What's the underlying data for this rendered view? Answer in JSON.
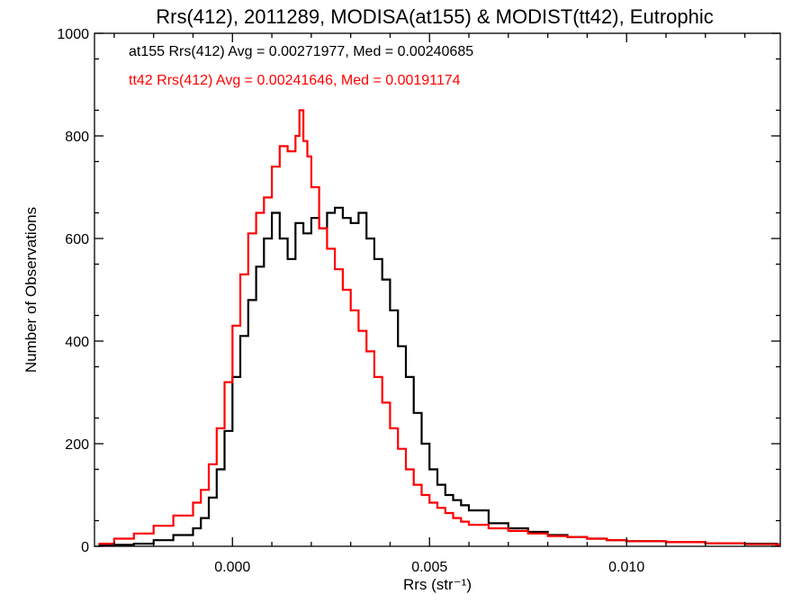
{
  "chart_data": {
    "type": "line",
    "step": true,
    "title": "Rrs(412), 2011289, MODISA(at155) & MODIST(tt42), Eutrophic",
    "xlabel": "Rrs (str⁻¹)",
    "ylabel": "Number of Observations",
    "xlim": [
      -0.0035,
      0.0139
    ],
    "ylim": [
      0,
      1000
    ],
    "xticks": [
      0.0,
      0.005,
      0.01
    ],
    "xtick_labels": [
      "0.000",
      "0.005",
      "0.010"
    ],
    "yticks": [
      0,
      200,
      400,
      600,
      800,
      1000
    ],
    "ytick_labels": [
      "0",
      "200",
      "400",
      "600",
      "800",
      "1000"
    ],
    "grid": false,
    "annotations": [
      {
        "text": "at155 Rrs(412) Avg = 0.00271977, Med = 0.00240685",
        "color": "#000000"
      },
      {
        "text": "tt42 Rrs(412) Avg = 0.00241646, Med = 0.00191174",
        "color": "#ff0000"
      }
    ],
    "series": [
      {
        "color": "#000000",
        "x": [
          -0.0034,
          -0.003,
          -0.0025,
          -0.002,
          -0.0015,
          -0.001,
          -0.0008,
          -0.0006,
          -0.0004,
          -0.0002,
          0.0,
          0.0002,
          0.0004,
          0.0006,
          0.0008,
          0.001,
          0.0012,
          0.0014,
          0.0016,
          0.0018,
          0.002,
          0.0022,
          0.0024,
          0.0026,
          0.0028,
          0.003,
          0.0032,
          0.0034,
          0.0036,
          0.0038,
          0.004,
          0.0042,
          0.0044,
          0.0046,
          0.0048,
          0.005,
          0.0052,
          0.0054,
          0.0056,
          0.0058,
          0.006,
          0.0065,
          0.007,
          0.0075,
          0.008,
          0.0085,
          0.009,
          0.0095,
          0.01,
          0.011,
          0.012,
          0.013,
          0.0138
        ],
        "y": [
          2,
          3,
          5,
          12,
          22,
          35,
          55,
          95,
          150,
          225,
          330,
          410,
          480,
          545,
          600,
          650,
          600,
          560,
          630,
          610,
          640,
          620,
          650,
          660,
          640,
          630,
          650,
          600,
          560,
          520,
          460,
          390,
          330,
          260,
          200,
          150,
          120,
          100,
          90,
          80,
          70,
          45,
          35,
          28,
          22,
          18,
          15,
          12,
          10,
          8,
          6,
          5,
          4
        ]
      },
      {
        "color": "#ff0000",
        "x": [
          -0.0034,
          -0.003,
          -0.0025,
          -0.002,
          -0.0015,
          -0.001,
          -0.0008,
          -0.0006,
          -0.0004,
          -0.0002,
          0.0,
          0.0002,
          0.0004,
          0.0006,
          0.0008,
          0.001,
          0.0012,
          0.0014,
          0.0016,
          0.0017,
          0.0018,
          0.0019,
          0.002,
          0.0022,
          0.0024,
          0.0026,
          0.0028,
          0.003,
          0.0032,
          0.0034,
          0.0036,
          0.0038,
          0.004,
          0.0042,
          0.0044,
          0.0046,
          0.0048,
          0.005,
          0.0052,
          0.0054,
          0.0056,
          0.0058,
          0.006,
          0.0065,
          0.007,
          0.0075,
          0.008,
          0.0085,
          0.009,
          0.0095,
          0.01,
          0.011,
          0.012,
          0.013,
          0.0138
        ],
        "y": [
          5,
          15,
          25,
          40,
          60,
          85,
          110,
          160,
          230,
          320,
          430,
          530,
          610,
          650,
          680,
          740,
          780,
          770,
          800,
          850,
          790,
          760,
          700,
          620,
          580,
          540,
          500,
          460,
          420,
          380,
          330,
          280,
          230,
          190,
          150,
          120,
          100,
          85,
          75,
          65,
          55,
          48,
          42,
          35,
          30,
          25,
          20,
          18,
          15,
          12,
          10,
          8,
          6,
          4,
          3
        ]
      }
    ]
  }
}
